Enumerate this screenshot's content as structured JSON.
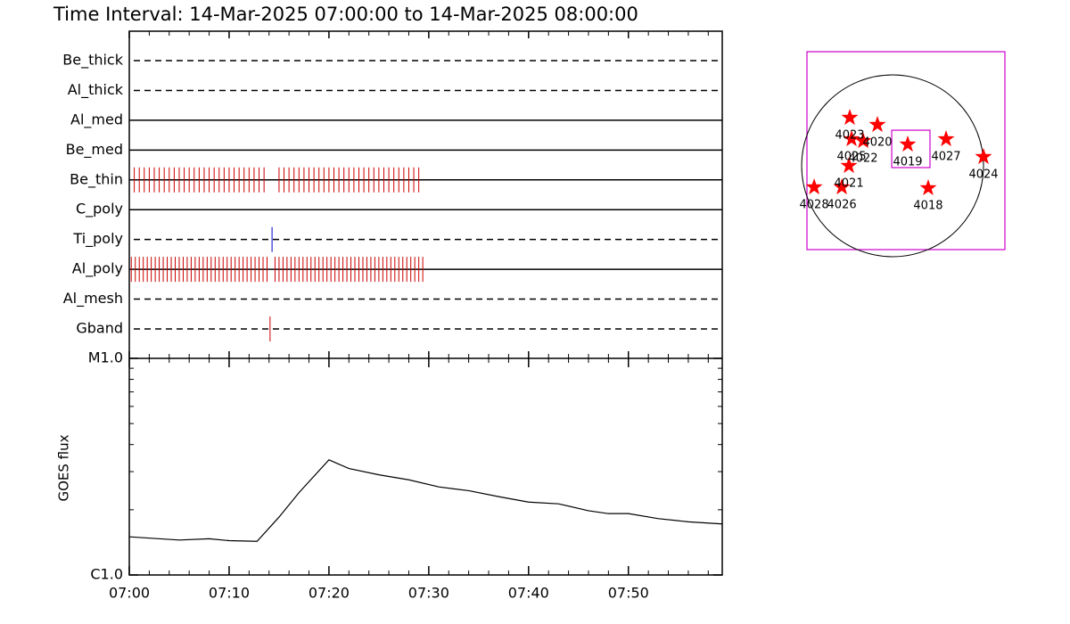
{
  "chart_data": [
    {
      "type": "timeline",
      "title": "Time Interval: 14-Mar-2025 07:00:00 to 14-Mar-2025 08:00:00",
      "rows": [
        {
          "label": "Be_thick",
          "line": "dashed"
        },
        {
          "label": "Al_thick",
          "line": "dashed"
        },
        {
          "label": "Al_med",
          "line": "solid"
        },
        {
          "label": "Be_med",
          "line": "solid"
        },
        {
          "label": "Be_thin",
          "line": "solid",
          "color": "#cc0000",
          "events": [
            0.5,
            1,
            1.5,
            2,
            2.5,
            3,
            3.5,
            4,
            4.5,
            5,
            5.5,
            6,
            6.5,
            7,
            7.5,
            8,
            8.5,
            9,
            9.5,
            10,
            10.5,
            11,
            11.5,
            12,
            12.5,
            13,
            13.5,
            15,
            15.5,
            16,
            16.5,
            17,
            17.5,
            18,
            18.5,
            19,
            19.5,
            20,
            20.5,
            21,
            21.5,
            22,
            22.5,
            23,
            23.5,
            24,
            24.5,
            25,
            25.5,
            26,
            26.5,
            27,
            27.5,
            28,
            28.5,
            29
          ]
        },
        {
          "label": "C_poly",
          "line": "solid"
        },
        {
          "label": "Ti_poly",
          "line": "dashed",
          "color": "#0000cc",
          "events": [
            14.3
          ]
        },
        {
          "label": "Al_poly",
          "line": "solid",
          "color": "#cc0000",
          "events": [
            0.2,
            0.6,
            1,
            1.4,
            1.8,
            2.2,
            2.6,
            3,
            3.4,
            3.8,
            4.2,
            4.6,
            5,
            5.4,
            5.8,
            6.2,
            6.6,
            7,
            7.4,
            7.8,
            8.2,
            8.6,
            9,
            9.4,
            9.8,
            10.2,
            10.6,
            11,
            11.4,
            11.8,
            12.2,
            12.6,
            13,
            13.4,
            13.8,
            14.6,
            15,
            15.4,
            15.8,
            16.2,
            16.6,
            17,
            17.4,
            17.8,
            18.2,
            18.6,
            19,
            19.4,
            19.8,
            20.2,
            20.6,
            21,
            21.4,
            21.8,
            22.2,
            22.6,
            23,
            23.4,
            23.8,
            24.2,
            24.6,
            25,
            25.4,
            25.8,
            26.2,
            26.6,
            27,
            27.4,
            27.8,
            28.2,
            28.6,
            29,
            29.4
          ]
        },
        {
          "label": "Al_mesh",
          "line": "dashed"
        },
        {
          "label": "Gband",
          "line": "dashed",
          "color": "#cc0000",
          "events": [
            14.1
          ]
        }
      ]
    },
    {
      "type": "line",
      "ylabel": "GOES flux",
      "log_y": true,
      "color": "#000000",
      "x": [
        0,
        5,
        8,
        10,
        12.8,
        15,
        17,
        20,
        22,
        25,
        28,
        31,
        34,
        37,
        40,
        43,
        46,
        48,
        50,
        53,
        56,
        59.4
      ],
      "values": [
        1.5e-06,
        1.45e-06,
        1.47e-06,
        1.44e-06,
        1.43e-06,
        1.85e-06,
        2.4e-06,
        3.4e-06,
        3.1e-06,
        2.9e-06,
        2.75e-06,
        2.55e-06,
        2.45e-06,
        2.3e-06,
        2.17e-06,
        2.13e-06,
        1.98e-06,
        1.92e-06,
        1.92e-06,
        1.82e-06,
        1.76e-06,
        1.72e-06
      ],
      "xlim": [
        0,
        59.4
      ],
      "xticks": [
        {
          "value": 0,
          "label": "07:00"
        },
        {
          "value": 10,
          "label": "07:10"
        },
        {
          "value": 20,
          "label": "07:20"
        },
        {
          "value": 30,
          "label": "07:30"
        },
        {
          "value": 40,
          "label": "07:40"
        },
        {
          "value": 50,
          "label": "07:50"
        }
      ],
      "ylim": [
        1e-06,
        1e-05
      ],
      "yticks": [
        {
          "value": 1e-06,
          "label": "C1.0"
        },
        {
          "value": 1e-05,
          "label": "M1.0"
        }
      ]
    },
    {
      "type": "scatter",
      "marker": "star",
      "color": "#ff0000",
      "frame_color": "#cc00cc",
      "labels": [
        "4023",
        "4025",
        "4020",
        "4022",
        "4019",
        "4027",
        "4024",
        "4021",
        "4028",
        "4026",
        "4018"
      ],
      "x": [
        -452,
        -433,
        -160,
        -311,
        160,
        565,
        960,
        -461,
        -828,
        -536,
        376
      ],
      "y": [
        508,
        282,
        433,
        263,
        226,
        282,
        94,
        0,
        -226,
        -226,
        -235
      ],
      "xlim": [
        -904,
        1186
      ],
      "ylim": [
        -885,
        1205
      ],
      "fov": {
        "x": [
          -9,
          395
        ],
        "y": [
          -19,
          376
        ]
      }
    }
  ]
}
